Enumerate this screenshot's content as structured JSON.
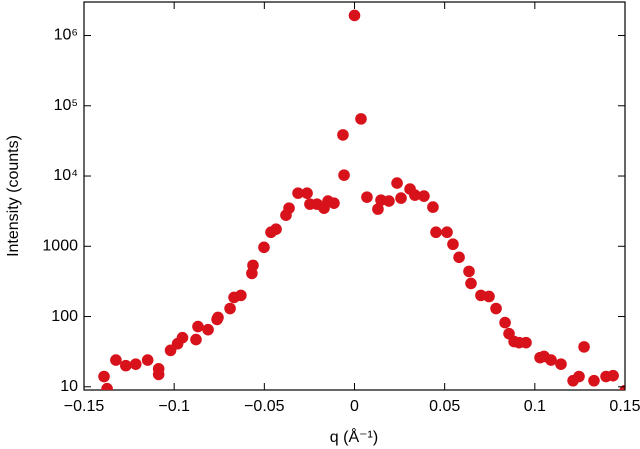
{
  "chart_data": {
    "type": "scatter",
    "xlabel": "q (Å⁻¹)",
    "ylabel": "Intensity (counts)",
    "ylog": true,
    "color": "#d7121b",
    "xlim": [
      -0.15,
      0.15
    ],
    "xticks": [
      {
        "value": -0.15,
        "label": "−0.15"
      },
      {
        "value": -0.1,
        "label": "−0.1"
      },
      {
        "value": -0.05,
        "label": "−0.05"
      },
      0,
      0.05,
      0.1,
      0.15
    ],
    "ylim": [
      9,
      3000000
    ],
    "yticks": [
      10,
      100,
      1000,
      {
        "value": 10000,
        "label": "10⁴"
      },
      {
        "value": 100000,
        "label": "10⁵"
      },
      {
        "value": 1000000,
        "label": "10⁶"
      }
    ],
    "x": [
      -0.1389,
      -0.1372,
      -0.1323,
      -0.1268,
      -0.1213,
      -0.1147,
      -0.1086,
      -0.1086,
      -0.102,
      -0.0981,
      -0.0954,
      -0.0879,
      -0.0868,
      -0.0812,
      -0.0762,
      -0.0757,
      -0.069,
      -0.0668,
      -0.063,
      -0.0569,
      -0.0563,
      -0.0502,
      -0.0463,
      -0.0435,
      -0.038,
      -0.0363,
      -0.0313,
      -0.0263,
      -0.0247,
      -0.0208,
      -0.0169,
      -0.0147,
      -0.0114,
      -0.0064,
      -0.0058,
      0,
      0.0036,
      0.0069,
      0.013,
      0.0147,
      0.0191,
      0.0236,
      0.0258,
      0.0308,
      0.0335,
      0.0385,
      0.0435,
      0.0452,
      0.0513,
      0.0546,
      0.058,
      0.0635,
      0.0646,
      0.0701,
      0.0746,
      0.0785,
      0.0835,
      0.0857,
      0.0885,
      0.0913,
      0.0951,
      0.1029,
      0.1051,
      0.109,
      0.1145,
      0.1212,
      0.1245,
      0.1273,
      0.1328,
      0.1395,
      0.1434,
      0.15
    ],
    "values": [
      14,
      9.4,
      24,
      20,
      21,
      24,
      18,
      15,
      33,
      41,
      50,
      47,
      72,
      65,
      91,
      97,
      130,
      187,
      200,
      411,
      535,
      967,
      1585,
      1750,
      2770,
      3490,
      5710,
      5700,
      3980,
      3980,
      3490,
      4400,
      4110,
      38500,
      10300,
      1930000,
      65100,
      5010,
      3380,
      4540,
      4400,
      7940,
      4850,
      6520,
      5350,
      5180,
      3610,
      1585,
      1585,
      1070,
      697,
      439,
      296,
      200,
      193,
      130,
      82,
      57,
      44,
      42.5,
      42.5,
      26,
      27,
      24,
      21,
      12.2,
      14,
      37,
      12.2,
      14,
      14.4,
      8.8
    ]
  }
}
